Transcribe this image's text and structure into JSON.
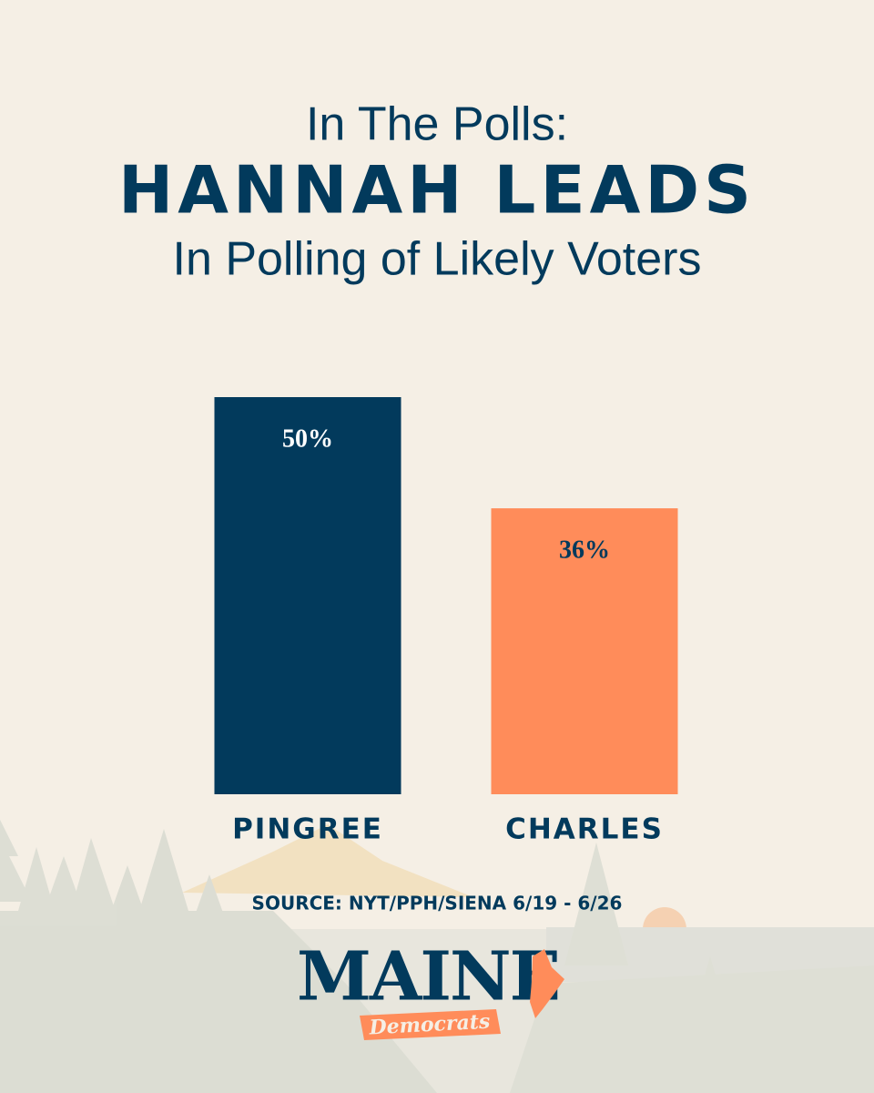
{
  "chart_data": {
    "type": "bar",
    "kicker": "In The Polls:",
    "title": "HANNAH LEADS",
    "subtitle": "In Polling of Likely Voters",
    "categories": [
      "PINGREE",
      "CHARLES"
    ],
    "values": [
      50,
      36
    ],
    "value_labels": [
      "50%",
      "36%"
    ],
    "colors": [
      "#023a5c",
      "#ff8c5a"
    ],
    "label_colors": [
      "#ffffff",
      "#023a5c"
    ],
    "ylim": [
      0,
      50
    ],
    "source": "SOURCE: NYT/PPH/SIENA 6/19 - 6/26",
    "logo": {
      "name": "MAINE",
      "tagline": "Democrats"
    }
  }
}
